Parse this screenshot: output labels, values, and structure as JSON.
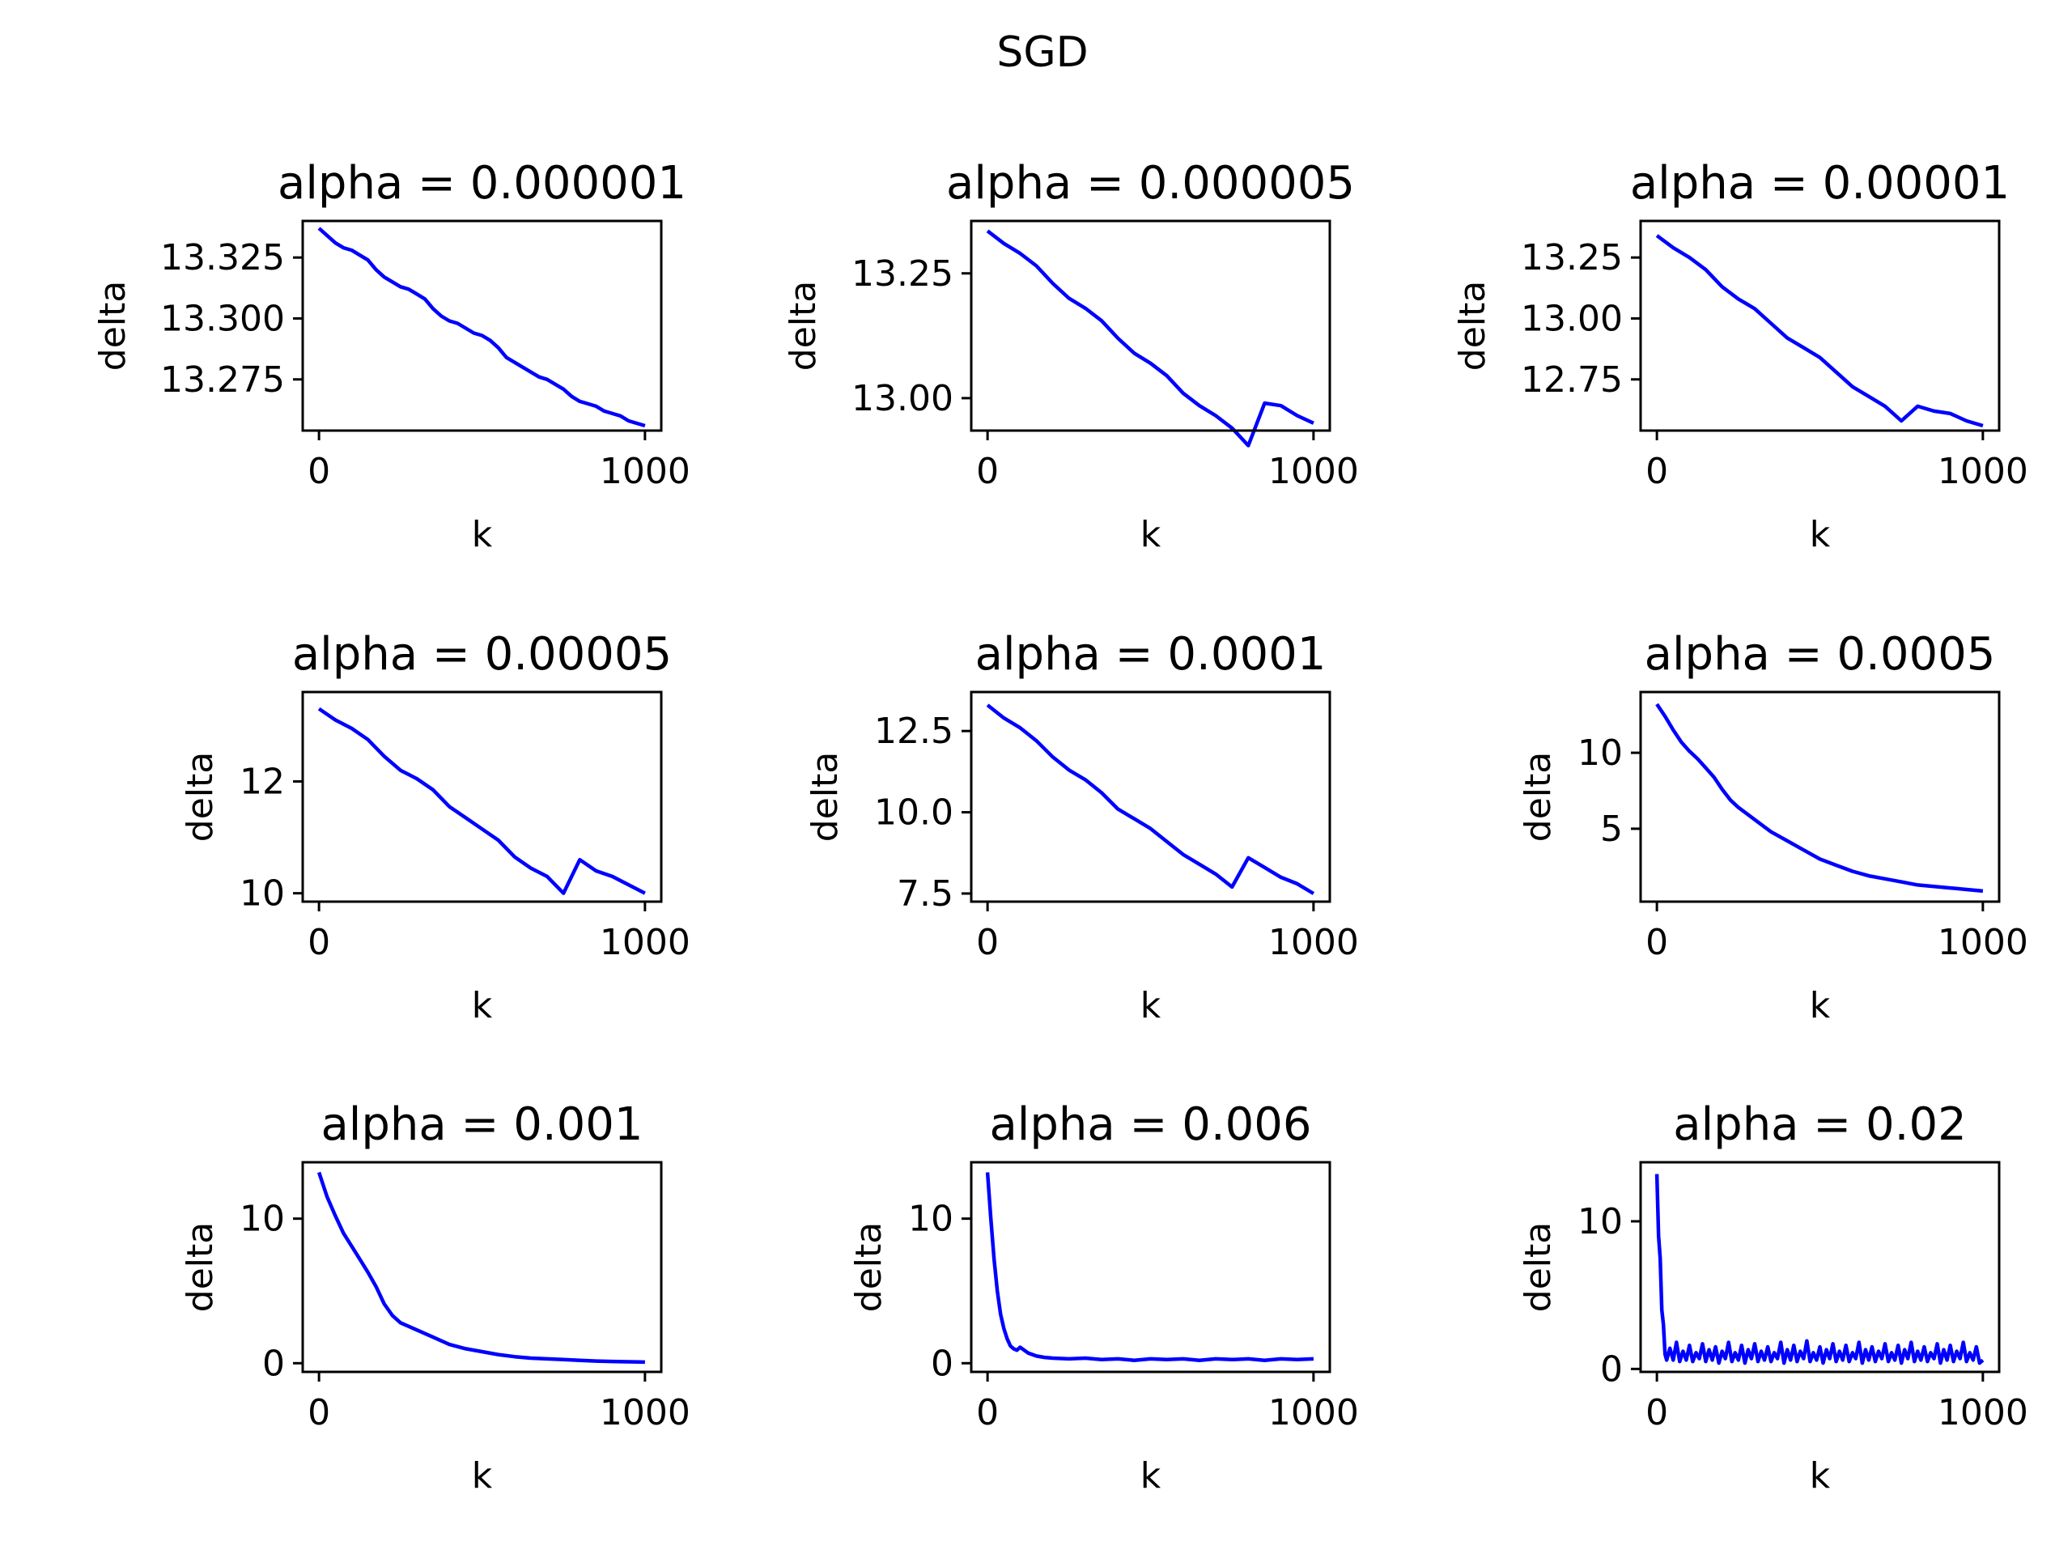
{
  "figure": {
    "title": "SGD"
  },
  "style": {
    "line_color": "#0000ff",
    "axis_color": "#000000",
    "background": "#ffffff"
  },
  "chart_data": [
    {
      "type": "line",
      "title": "alpha = 0.000001",
      "xlabel": "k",
      "ylabel": "delta",
      "xlim": [
        -50,
        1050
      ],
      "ylim": [
        13.254,
        13.34
      ],
      "xticks": [
        0,
        1000
      ],
      "yticks": [
        13.275,
        13.3,
        13.325
      ],
      "yticklabels": [
        "13.275",
        "13.300",
        "13.325"
      ],
      "series": [
        {
          "x": [
            0,
            25,
            50,
            75,
            100,
            125,
            150,
            175,
            200,
            225,
            250,
            275,
            300,
            325,
            350,
            375,
            400,
            425,
            450,
            475,
            500,
            525,
            550,
            575,
            600,
            625,
            650,
            675,
            700,
            725,
            750,
            775,
            800,
            825,
            850,
            875,
            900,
            925,
            950,
            975,
            1000
          ],
          "y": [
            13.337,
            13.334,
            13.331,
            13.329,
            13.328,
            13.326,
            13.324,
            13.32,
            13.317,
            13.315,
            13.313,
            13.312,
            13.31,
            13.308,
            13.304,
            13.301,
            13.299,
            13.298,
            13.296,
            13.294,
            13.293,
            13.291,
            13.288,
            13.284,
            13.282,
            13.28,
            13.278,
            13.276,
            13.275,
            13.273,
            13.271,
            13.268,
            13.266,
            13.265,
            13.264,
            13.262,
            13.261,
            13.26,
            13.258,
            13.257,
            13.256
          ]
        }
      ]
    },
    {
      "type": "line",
      "title": "alpha = 0.000005",
      "xlabel": "k",
      "ylabel": "delta",
      "xlim": [
        -50,
        1050
      ],
      "ylim": [
        12.935,
        13.355
      ],
      "xticks": [
        0,
        1000
      ],
      "yticks": [
        13.0,
        13.25
      ],
      "yticklabels": [
        "13.00",
        "13.25"
      ],
      "series": [
        {
          "x": [
            0,
            50,
            100,
            150,
            200,
            250,
            300,
            350,
            400,
            450,
            500,
            550,
            600,
            650,
            700,
            750,
            800,
            850,
            900,
            950,
            1000
          ],
          "y": [
            13.335,
            13.31,
            13.29,
            13.265,
            13.23,
            13.2,
            13.18,
            13.155,
            13.12,
            13.09,
            13.07,
            13.045,
            13.01,
            12.985,
            12.965,
            12.94,
            12.905,
            12.99,
            12.985,
            12.965,
            12.95
          ]
        }
      ]
    },
    {
      "type": "line",
      "title": "alpha = 0.00001",
      "xlabel": "k",
      "ylabel": "delta",
      "xlim": [
        -50,
        1050
      ],
      "ylim": [
        12.54,
        13.4
      ],
      "xticks": [
        0,
        1000
      ],
      "yticks": [
        12.75,
        13.0,
        13.25
      ],
      "yticklabels": [
        "12.75",
        "13.00",
        "13.25"
      ],
      "series": [
        {
          "x": [
            0,
            50,
            100,
            150,
            200,
            250,
            300,
            350,
            400,
            450,
            500,
            550,
            600,
            650,
            700,
            750,
            800,
            850,
            900,
            950,
            1000
          ],
          "y": [
            13.34,
            13.29,
            13.25,
            13.2,
            13.13,
            13.08,
            13.04,
            12.98,
            12.92,
            12.88,
            12.84,
            12.78,
            12.72,
            12.68,
            12.64,
            12.58,
            12.64,
            12.62,
            12.61,
            12.58,
            12.56
          ]
        }
      ]
    },
    {
      "type": "line",
      "title": "alpha = 0.00005",
      "xlabel": "k",
      "ylabel": "delta",
      "xlim": [
        -50,
        1050
      ],
      "ylim": [
        9.85,
        13.6
      ],
      "xticks": [
        0,
        1000
      ],
      "yticks": [
        10,
        12
      ],
      "yticklabels": [
        "10",
        "12"
      ],
      "series": [
        {
          "x": [
            0,
            50,
            100,
            150,
            200,
            250,
            300,
            350,
            400,
            450,
            500,
            550,
            600,
            650,
            700,
            750,
            800,
            850,
            900,
            950,
            1000
          ],
          "y": [
            13.3,
            13.1,
            12.95,
            12.75,
            12.45,
            12.2,
            12.05,
            11.85,
            11.55,
            11.35,
            11.15,
            10.95,
            10.65,
            10.45,
            10.3,
            10.0,
            10.6,
            10.4,
            10.3,
            10.15,
            10.0
          ]
        }
      ]
    },
    {
      "type": "line",
      "title": "alpha = 0.0001",
      "xlabel": "k",
      "ylabel": "delta",
      "xlim": [
        -50,
        1050
      ],
      "ylim": [
        7.25,
        13.7
      ],
      "xticks": [
        0,
        1000
      ],
      "yticks": [
        7.5,
        10.0,
        12.5
      ],
      "yticklabels": [
        "7.5",
        "10.0",
        "12.5"
      ],
      "series": [
        {
          "x": [
            0,
            50,
            100,
            150,
            200,
            250,
            300,
            350,
            400,
            450,
            500,
            550,
            600,
            650,
            700,
            750,
            800,
            850,
            900,
            950,
            1000
          ],
          "y": [
            13.3,
            12.9,
            12.6,
            12.2,
            11.7,
            11.3,
            11.0,
            10.6,
            10.1,
            9.8,
            9.5,
            9.1,
            8.7,
            8.4,
            8.1,
            7.7,
            8.6,
            8.3,
            8.0,
            7.8,
            7.5
          ]
        }
      ]
    },
    {
      "type": "line",
      "title": "alpha = 0.0005",
      "xlabel": "k",
      "ylabel": "delta",
      "xlim": [
        -50,
        1050
      ],
      "ylim": [
        0.2,
        14.0
      ],
      "xticks": [
        0,
        1000
      ],
      "yticks": [
        5,
        10
      ],
      "yticklabels": [
        "5",
        "10"
      ],
      "series": [
        {
          "x": [
            0,
            25,
            50,
            75,
            100,
            125,
            150,
            175,
            200,
            225,
            250,
            300,
            350,
            400,
            450,
            500,
            550,
            600,
            650,
            700,
            750,
            800,
            850,
            900,
            950,
            1000
          ],
          "y": [
            13.2,
            12.4,
            11.5,
            10.7,
            10.1,
            9.6,
            9.0,
            8.4,
            7.6,
            6.9,
            6.4,
            5.6,
            4.8,
            4.2,
            3.6,
            3.0,
            2.6,
            2.2,
            1.9,
            1.7,
            1.5,
            1.3,
            1.2,
            1.1,
            1.0,
            0.9
          ]
        }
      ]
    },
    {
      "type": "line",
      "title": "alpha = 0.001",
      "xlabel": "k",
      "ylabel": "delta",
      "xlim": [
        -50,
        1050
      ],
      "ylim": [
        -0.6,
        13.9
      ],
      "xticks": [
        0,
        1000
      ],
      "yticks": [
        0,
        10
      ],
      "yticklabels": [
        "0",
        "10"
      ],
      "series": [
        {
          "x": [
            0,
            25,
            50,
            75,
            100,
            125,
            150,
            175,
            200,
            225,
            250,
            300,
            350,
            400,
            450,
            500,
            550,
            600,
            650,
            700,
            750,
            800,
            850,
            900,
            950,
            1000
          ],
          "y": [
            13.2,
            11.5,
            10.2,
            9.0,
            8.1,
            7.2,
            6.3,
            5.3,
            4.1,
            3.3,
            2.8,
            2.3,
            1.8,
            1.3,
            1.0,
            0.8,
            0.6,
            0.45,
            0.35,
            0.3,
            0.25,
            0.2,
            0.15,
            0.12,
            0.1,
            0.08
          ]
        }
      ]
    },
    {
      "type": "line",
      "title": "alpha = 0.006",
      "xlabel": "k",
      "ylabel": "delta",
      "xlim": [
        -50,
        1050
      ],
      "ylim": [
        -0.6,
        13.9
      ],
      "xticks": [
        0,
        1000
      ],
      "yticks": [
        0,
        10
      ],
      "yticklabels": [
        "0",
        "10"
      ],
      "series": [
        {
          "x": [
            0,
            10,
            20,
            30,
            40,
            50,
            60,
            70,
            80,
            90,
            100,
            125,
            150,
            175,
            200,
            250,
            300,
            350,
            400,
            450,
            500,
            550,
            600,
            650,
            700,
            750,
            800,
            850,
            900,
            950,
            1000
          ],
          "y": [
            13.2,
            10.0,
            7.2,
            5.0,
            3.4,
            2.4,
            1.7,
            1.2,
            1.0,
            0.9,
            1.1,
            0.7,
            0.5,
            0.4,
            0.35,
            0.3,
            0.35,
            0.25,
            0.3,
            0.2,
            0.3,
            0.25,
            0.3,
            0.2,
            0.3,
            0.25,
            0.3,
            0.2,
            0.3,
            0.25,
            0.3
          ]
        }
      ]
    },
    {
      "type": "line",
      "title": "alpha = 0.02",
      "xlabel": "k",
      "ylabel": "delta",
      "xlim": [
        -50,
        1050
      ],
      "ylim": [
        -0.2,
        14.0
      ],
      "xticks": [
        0,
        1000
      ],
      "yticks": [
        0,
        10
      ],
      "yticklabels": [
        "0",
        "10"
      ],
      "series": [
        {
          "x": [
            0,
            5,
            10,
            15,
            20,
            25,
            30,
            40,
            50,
            60,
            70,
            80,
            90,
            100,
            110,
            120,
            130,
            140,
            150,
            160,
            170,
            180,
            190,
            200,
            210,
            220,
            230,
            240,
            250,
            260,
            270,
            280,
            290,
            300,
            310,
            320,
            330,
            340,
            350,
            360,
            370,
            380,
            390,
            400,
            410,
            420,
            430,
            440,
            450,
            460,
            470,
            480,
            490,
            500,
            510,
            520,
            530,
            540,
            550,
            560,
            570,
            580,
            590,
            600,
            610,
            620,
            630,
            640,
            650,
            660,
            670,
            680,
            690,
            700,
            710,
            720,
            730,
            740,
            750,
            760,
            770,
            780,
            790,
            800,
            810,
            820,
            830,
            840,
            850,
            860,
            870,
            880,
            890,
            900,
            910,
            920,
            930,
            940,
            950,
            960,
            970,
            980,
            990,
            1000
          ],
          "y": [
            13.2,
            9.0,
            7.5,
            4.0,
            3.0,
            1.0,
            0.6,
            1.4,
            0.6,
            1.8,
            0.5,
            1.2,
            0.6,
            1.6,
            0.5,
            1.1,
            0.7,
            1.7,
            0.5,
            1.3,
            0.6,
            1.5,
            0.4,
            1.2,
            0.7,
            1.8,
            0.5,
            1.1,
            0.6,
            1.6,
            0.4,
            1.3,
            0.7,
            1.7,
            0.5,
            1.2,
            0.6,
            1.5,
            0.5,
            1.1,
            0.7,
            1.8,
            0.4,
            1.3,
            0.6,
            1.6,
            0.5,
            1.2,
            0.7,
            1.9,
            0.5,
            1.1,
            0.6,
            1.5,
            0.4,
            1.3,
            0.7,
            1.7,
            0.5,
            1.2,
            0.6,
            1.6,
            0.5,
            1.1,
            0.7,
            1.8,
            0.4,
            1.3,
            0.6,
            1.5,
            0.5,
            1.2,
            0.7,
            1.7,
            0.5,
            1.1,
            0.6,
            1.6,
            0.4,
            1.3,
            0.7,
            1.8,
            0.5,
            1.2,
            0.6,
            1.5,
            0.5,
            1.1,
            0.7,
            1.7,
            0.4,
            1.3,
            0.6,
            1.6,
            0.5,
            1.2,
            0.7,
            1.8,
            0.5,
            1.1,
            0.6,
            1.5,
            0.4,
            0.6
          ]
        }
      ]
    }
  ]
}
